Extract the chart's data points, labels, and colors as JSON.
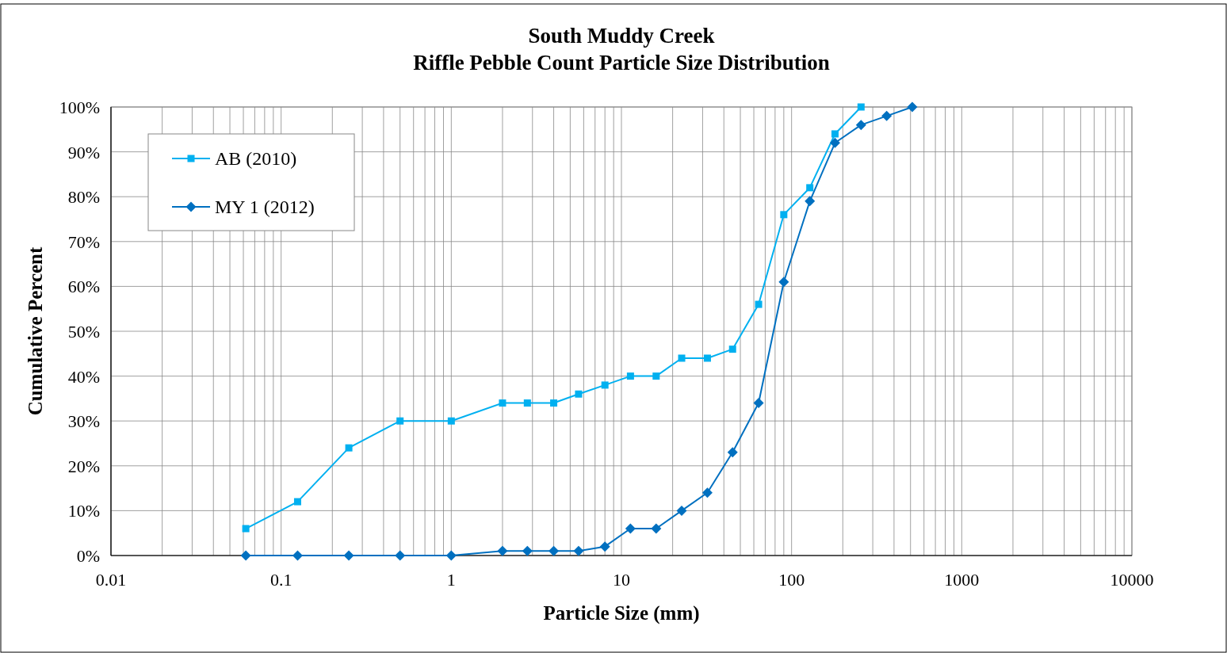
{
  "chart_data": {
    "type": "line",
    "title": "South Muddy Creek\nRiffle Pebble Count Particle Size Distribution",
    "xlabel": "Particle Size (mm)",
    "ylabel": "Cumulative Percent",
    "log": "x",
    "xlim": [
      0.01,
      10000
    ],
    "xticks": [
      0.01,
      0.1,
      1,
      10,
      100,
      1000,
      10000
    ],
    "ylim": [
      0,
      100
    ],
    "yticks": [
      {
        "value": 0,
        "label": "0%"
      },
      {
        "value": 10,
        "label": "10%"
      },
      {
        "value": 20,
        "label": "20%"
      },
      {
        "value": 30,
        "label": "30%"
      },
      {
        "value": 40,
        "label": "40%"
      },
      {
        "value": 50,
        "label": "50%"
      },
      {
        "value": 60,
        "label": "60%"
      },
      {
        "value": 70,
        "label": "70%"
      },
      {
        "value": 80,
        "label": "80%"
      },
      {
        "value": 90,
        "label": "90%"
      },
      {
        "value": 100,
        "label": "100%"
      }
    ],
    "grid": true,
    "legend": "top left",
    "line_style": "solid",
    "series": [
      {
        "name": "AB (2010)",
        "color": "#00b0f0",
        "marker": "square",
        "x": [
          0.062,
          0.125,
          0.25,
          0.5,
          1,
          2,
          2.8,
          4,
          5.6,
          8,
          11.3,
          16,
          22.6,
          32,
          45,
          64,
          90,
          128,
          180,
          256
        ],
        "values": [
          6,
          12,
          24,
          30,
          30,
          34,
          34,
          34,
          36,
          38,
          40,
          40,
          44,
          44,
          46,
          56,
          76,
          82,
          94,
          100
        ]
      },
      {
        "name": "MY 1 (2012)",
        "color": "#0070c0",
        "marker": "diamond",
        "x": [
          0.062,
          0.125,
          0.25,
          0.5,
          1,
          2,
          2.8,
          4,
          5.6,
          8,
          11.3,
          16,
          22.6,
          32,
          45,
          64,
          90,
          128,
          180,
          256,
          362,
          512
        ],
        "values": [
          0,
          0,
          0,
          0,
          0,
          1,
          1,
          1,
          1,
          2,
          6,
          6,
          10,
          14,
          23,
          34,
          61,
          79,
          92,
          96,
          98,
          100
        ]
      }
    ]
  }
}
